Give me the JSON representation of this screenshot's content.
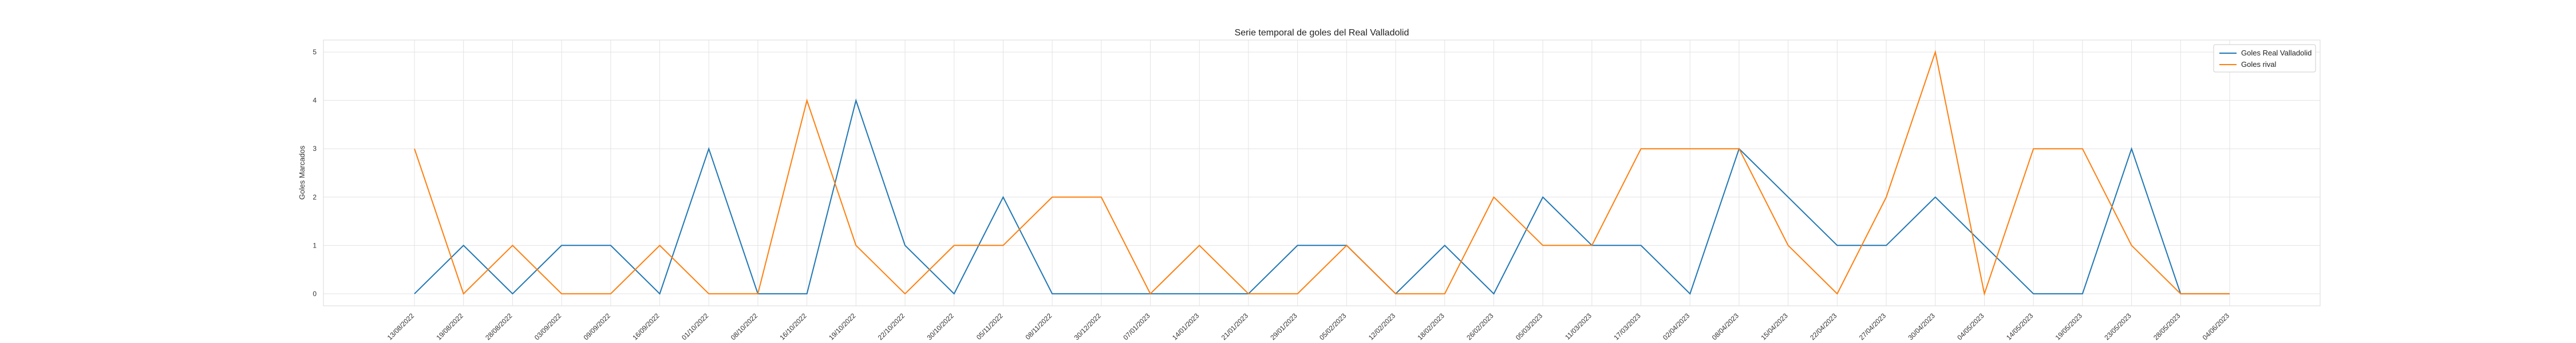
{
  "chart_data": {
    "type": "line",
    "title": "Serie temporal de goles del Real Valladolid",
    "xlabel": "",
    "ylabel": "Goles Marcados",
    "ylim": [
      -0.25,
      5.25
    ],
    "yticks": [
      0,
      1,
      2,
      3,
      4,
      5
    ],
    "grid": true,
    "legend_position": "top-right",
    "categories": [
      "13/08/2022",
      "19/08/2022",
      "28/08/2022",
      "03/09/2022",
      "09/09/2022",
      "16/09/2022",
      "01/10/2022",
      "08/10/2022",
      "16/10/2022",
      "19/10/2022",
      "22/10/2022",
      "30/10/2022",
      "05/11/2022",
      "08/11/2022",
      "30/12/2022",
      "07/01/2023",
      "14/01/2023",
      "21/01/2023",
      "29/01/2023",
      "05/02/2023",
      "12/02/2023",
      "18/02/2023",
      "26/02/2023",
      "05/03/2023",
      "11/03/2023",
      "17/03/2023",
      "02/04/2023",
      "08/04/2023",
      "15/04/2023",
      "22/04/2023",
      "27/04/2023",
      "30/04/2023",
      "04/05/2023",
      "14/05/2023",
      "19/05/2023",
      "23/05/2023",
      "28/05/2023",
      "04/06/2023"
    ],
    "series": [
      {
        "name": "Goles Real Valladolid",
        "color": "#1f77b4",
        "values": [
          0,
          1,
          0,
          1,
          1,
          0,
          3,
          0,
          0,
          4,
          1,
          0,
          2,
          0,
          0,
          0,
          0,
          0,
          1,
          1,
          0,
          1,
          0,
          2,
          1,
          1,
          0,
          3,
          2,
          1,
          1,
          2,
          1,
          0,
          0,
          3,
          0,
          0
        ]
      },
      {
        "name": "Goles rival",
        "color": "#ff7f0e",
        "values": [
          3,
          0,
          1,
          0,
          0,
          1,
          0,
          0,
          4,
          1,
          0,
          1,
          1,
          2,
          2,
          0,
          1,
          0,
          0,
          1,
          0,
          0,
          2,
          1,
          1,
          3,
          3,
          3,
          1,
          0,
          2,
          5,
          0,
          3,
          3,
          1,
          0,
          0
        ]
      }
    ]
  }
}
